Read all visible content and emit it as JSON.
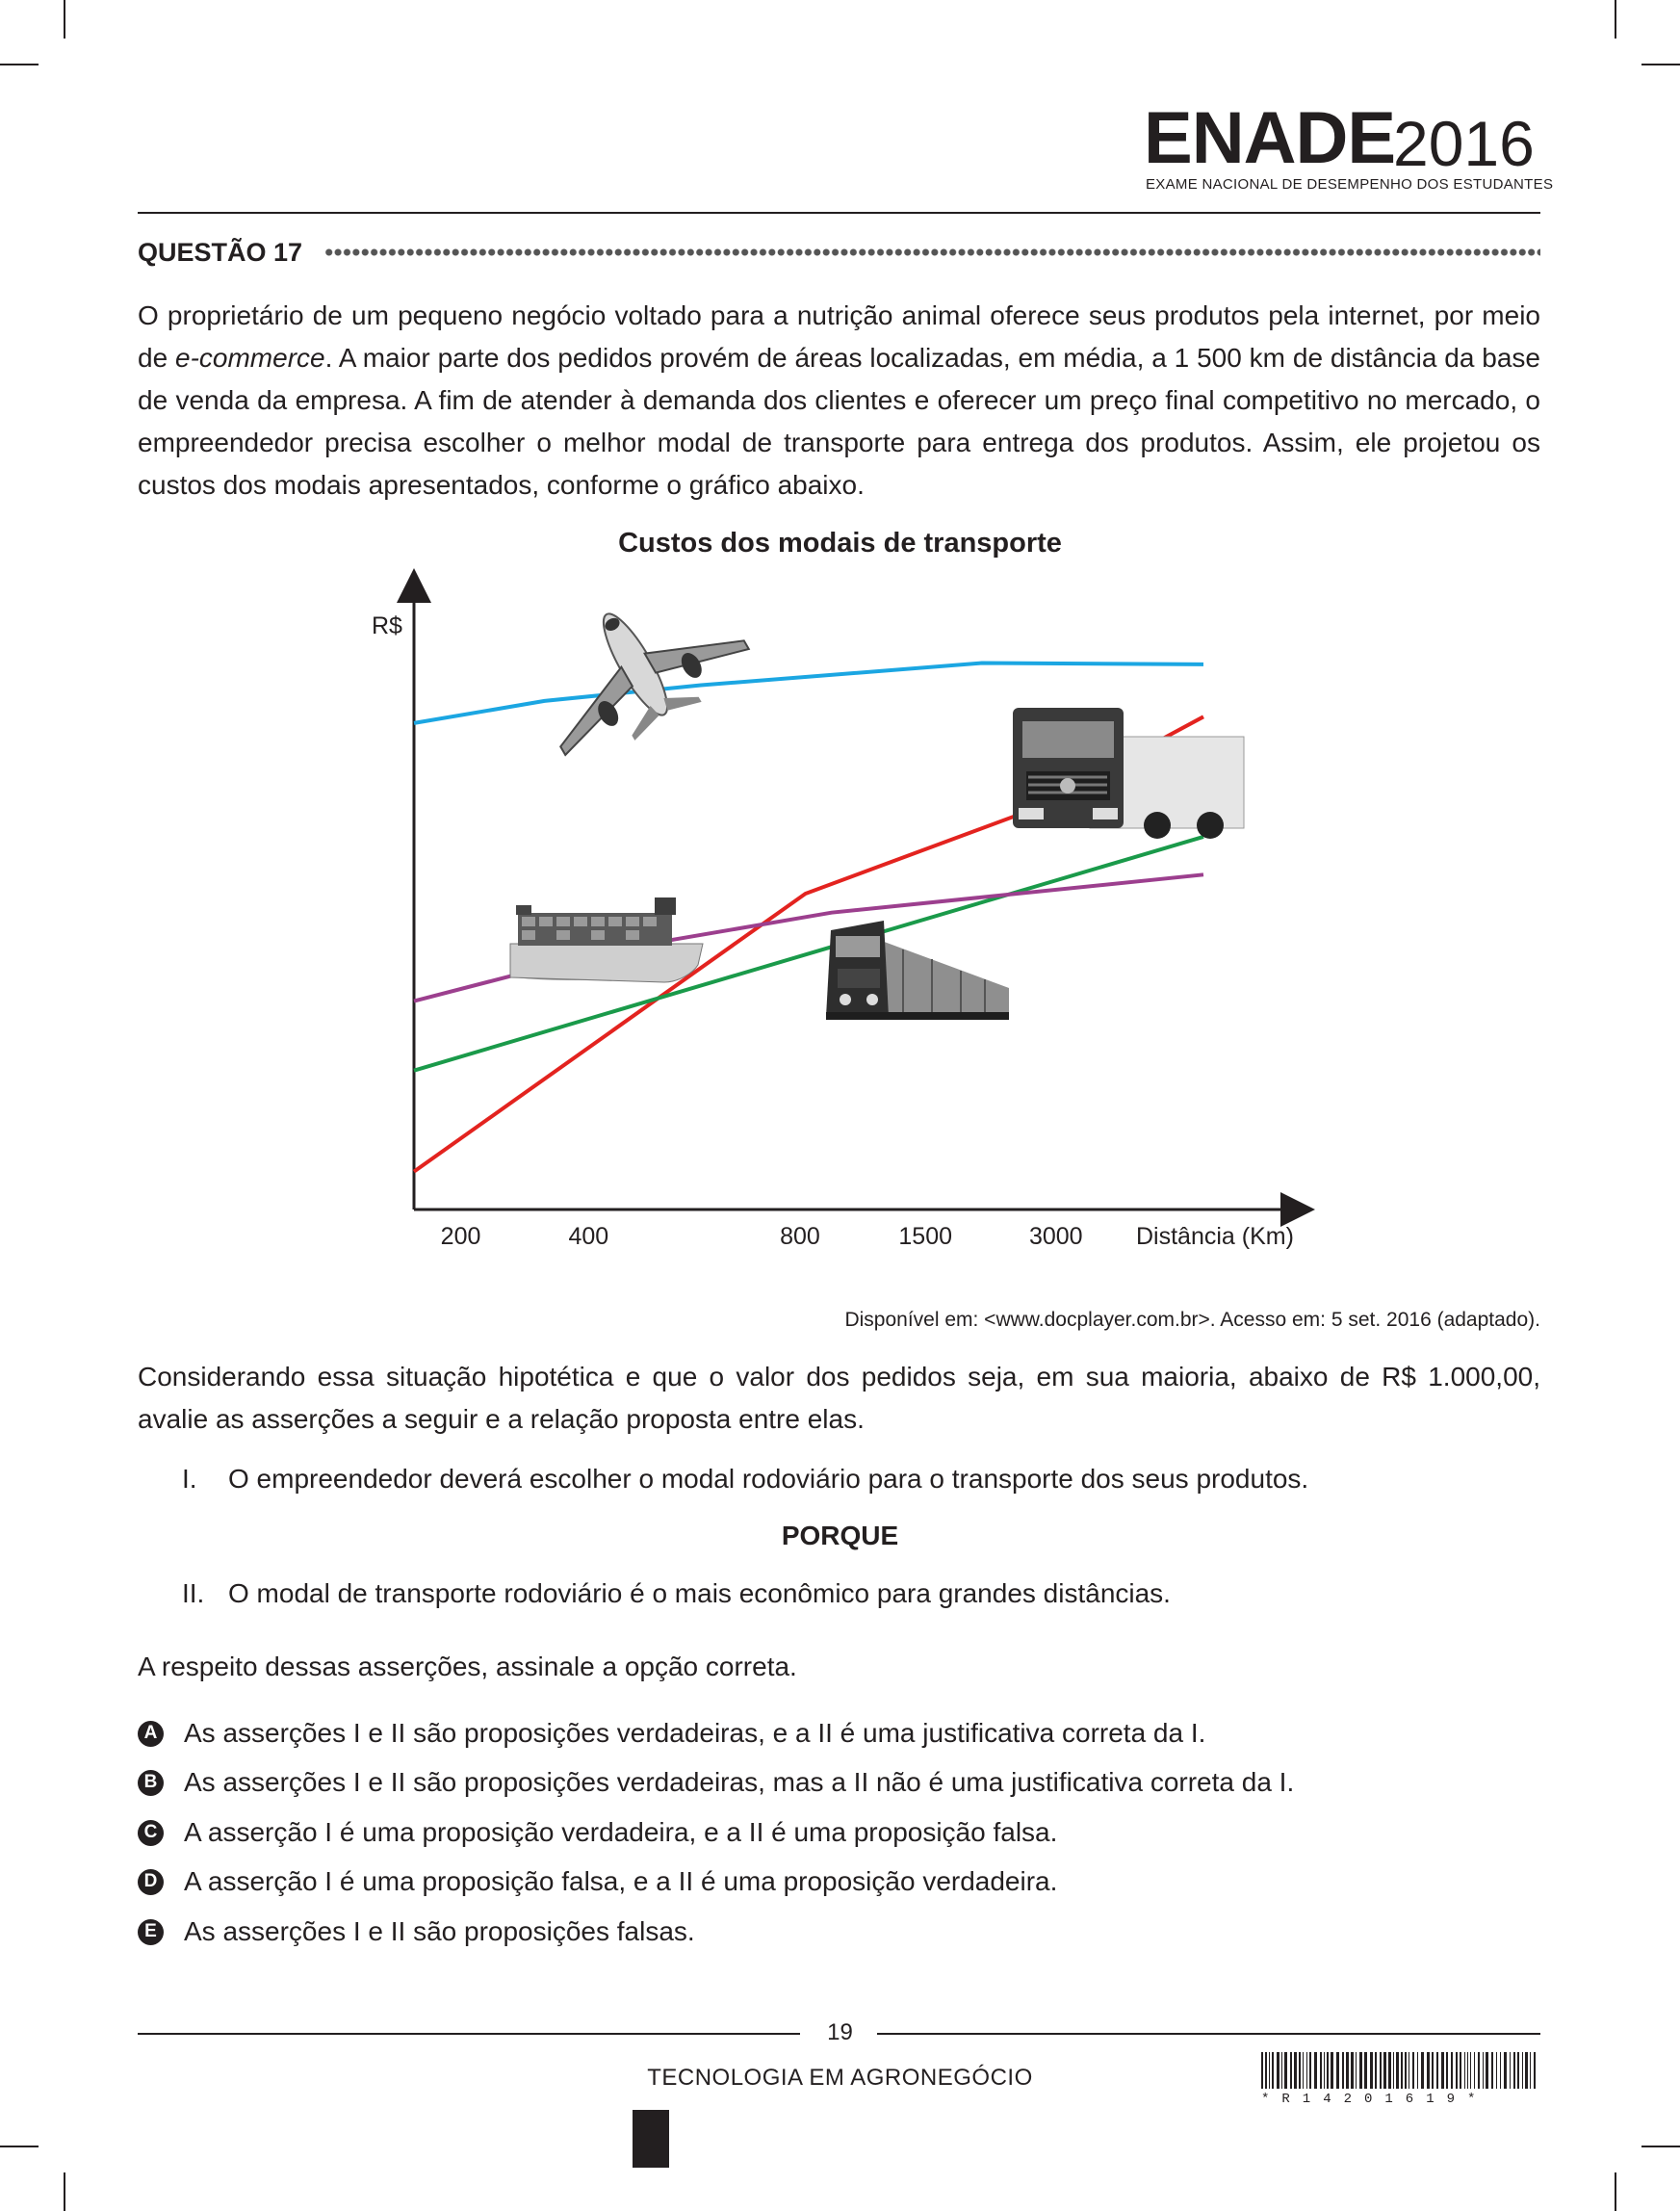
{
  "header": {
    "logo_main": "ENADE",
    "logo_year": "2016",
    "logo_subtitle": "EXAME NACIONAL DE DESEMPENHO DOS ESTUDANTES"
  },
  "question": {
    "title": "QUESTÃO 17",
    "intro_pre": "O proprietário de um pequeno negócio voltado para a nutrição animal oferece seus produtos pela internet, por meio de ",
    "intro_italic": "e-commerce",
    "intro_post": ". A maior parte dos pedidos provém de áreas localizadas, em média, a 1 500 km de distância da base de venda da empresa. A fim de atender à demanda dos clientes e oferecer um preço final competitivo no mercado, o empreendedor precisa escolher o melhor modal de transporte para entrega dos produtos. Assim, ele projetou os custos dos modais apresentados, conforme o gráfico abaixo.",
    "source": "Disponível em: <www.docplayer.com.br>. Acesso em: 5 set. 2016 (adaptado).",
    "context": "Considerando essa situação hipotética e que o valor dos pedidos seja, em sua maioria, abaixo de R$ 1.000,00, avalie as asserções a seguir e a relação proposta entre elas.",
    "assertion_1_num": "I.",
    "assertion_1": "O empreendedor deverá escolher o modal rodoviário para o transporte dos seus produtos.",
    "connector": "PORQUE",
    "assertion_2_num": "II.",
    "assertion_2": "O modal de transporte rodoviário é o mais econômico para grandes distâncias.",
    "prompt": "A respeito dessas asserções, assinale a opção correta.",
    "options": [
      {
        "letter": "A",
        "text": "As asserções I e II são proposições verdadeiras, e a II é uma justificativa correta da I."
      },
      {
        "letter": "B",
        "text": "As asserções I e II são proposições verdadeiras, mas a II não é uma justificativa correta da I."
      },
      {
        "letter": "C",
        "text": "A asserção I é uma proposição verdadeira, e a II é uma proposição falsa."
      },
      {
        "letter": "D",
        "text": "A asserção I é uma proposição falsa, e a II é uma proposição verdadeira."
      },
      {
        "letter": "E",
        "text": "As asserções I e II são proposições falsas."
      }
    ]
  },
  "chart_data": {
    "type": "line",
    "title": "Custos dos modais de transporte",
    "ylabel": "R$",
    "xlabel": "Distância (Km)",
    "x_ticks": [
      "200",
      "400",
      "800",
      "1500",
      "3000"
    ],
    "x_tick_index": [
      0.16,
      1.14,
      2.76,
      3.67,
      4.67
    ],
    "x_range": [
      0,
      6.05
    ],
    "y_range": [
      0,
      100
    ],
    "colors": {
      "air": "#1ba6e2",
      "road": "#e3231f",
      "rail": "#1a9a4a",
      "water": "#9c3f8e"
    },
    "icons": [
      "airplane-icon",
      "truck-icon",
      "ship-icon",
      "train-icon"
    ],
    "series": [
      {
        "key": "air",
        "x": [
          0,
          1.0,
          2.2,
          4.35,
          6.05
        ],
        "y": [
          77,
          80.5,
          83,
          86.5,
          86.3
        ]
      },
      {
        "key": "road",
        "x": [
          0,
          1.5,
          3.0,
          4.7,
          6.05
        ],
        "y": [
          6,
          28,
          50,
          63,
          78
        ]
      },
      {
        "key": "rail",
        "x": [
          0,
          6.05
        ],
        "y": [
          22,
          59
        ]
      },
      {
        "key": "water",
        "x": [
          0,
          1.5,
          3.2,
          6.05
        ],
        "y": [
          33,
          41,
          47,
          53
        ]
      }
    ]
  },
  "footer": {
    "page_number": "19",
    "course": "TECNOLOGIA EM AGRONEGÓCIO",
    "barcode_text": "*R1420161​9*"
  }
}
